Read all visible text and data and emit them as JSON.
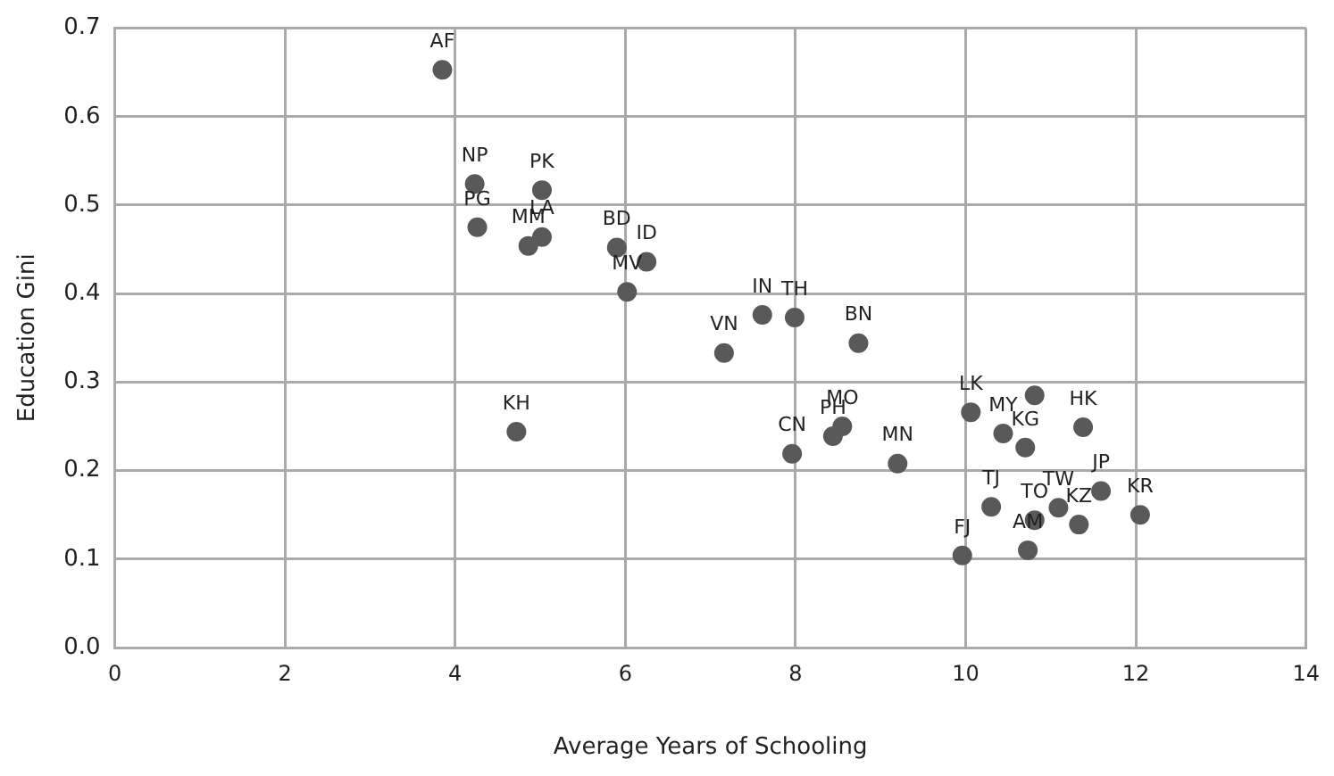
{
  "chart_data": {
    "type": "scatter",
    "xlabel": "Average Years of Schooling",
    "ylabel": "Education Gini",
    "xlim": [
      0,
      14
    ],
    "xticks": [
      0,
      2,
      4,
      6,
      8,
      10,
      12,
      14
    ],
    "ylim": [
      0,
      0.7
    ],
    "yticks": [
      {
        "value": 0,
        "label": "0.0"
      },
      0.1,
      0.2,
      0.3,
      0.4,
      0.5,
      0.6,
      0.7
    ],
    "grid": true,
    "legend": false,
    "marker": "circle",
    "series": [
      {
        "color": "#595959",
        "x": [
          3.85,
          4.23,
          4.26,
          5.02,
          5.02,
          4.86,
          5.9,
          6.25,
          6.02,
          4.72,
          7.61,
          7.99,
          7.16,
          8.74,
          10.06,
          10.81,
          8.55,
          8.44,
          7.96,
          9.2,
          9.96,
          10.3,
          10.44,
          11.38,
          10.7,
          11.59,
          11.09,
          10.81,
          11.33,
          12.05,
          10.73
        ],
        "values": [
          0.653,
          0.524,
          0.475,
          0.517,
          0.464,
          0.454,
          0.452,
          0.436,
          0.402,
          0.244,
          0.376,
          0.373,
          0.333,
          0.344,
          0.266,
          0.285,
          0.25,
          0.239,
          0.219,
          0.208,
          0.104,
          0.159,
          0.242,
          0.249,
          0.226,
          0.177,
          0.158,
          0.144,
          0.139,
          0.15,
          0.11
        ],
        "value_labels": [
          "AF",
          "NP",
          "PG",
          "PK",
          "LA",
          "MM",
          "BD",
          "ID",
          "MV",
          "KH",
          "IN",
          "TH",
          "VN",
          "BN",
          "LK",
          null,
          "MO",
          "PH",
          "CN",
          "MN",
          "FJ",
          "TJ",
          "MY",
          "HK",
          "KG",
          "JP",
          "TW",
          "TO",
          "KZ",
          "KR",
          "AM"
        ]
      }
    ]
  }
}
